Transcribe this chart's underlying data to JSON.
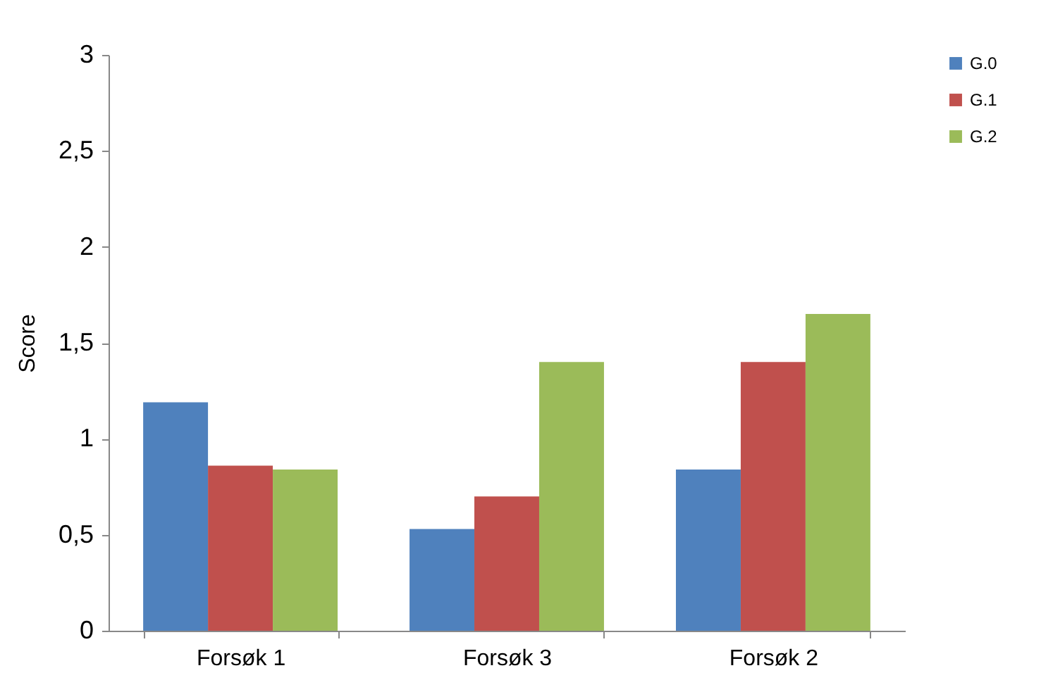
{
  "chart_data": {
    "type": "bar",
    "ylabel": "Score",
    "categories": [
      "Forsøk 1",
      "Forsøk 3",
      "Forsøk 2"
    ],
    "series": [
      {
        "name": "G.0",
        "color": "#4f81bd",
        "values": [
          1.19,
          0.53,
          0.84
        ]
      },
      {
        "name": "G.1",
        "color": "#c0504d",
        "values": [
          0.86,
          0.7,
          1.4
        ]
      },
      {
        "name": "G.2",
        "color": "#9bbb59",
        "values": [
          0.84,
          1.4,
          1.65
        ]
      }
    ],
    "ylim": [
      0,
      3
    ],
    "yticks": [
      0,
      {
        "value": 0.5,
        "label": "0,5"
      },
      1,
      {
        "value": 1.5,
        "label": "1,5"
      },
      2,
      {
        "value": 2.5,
        "label": "2,5"
      },
      3
    ],
    "grid": false,
    "legend": "right"
  }
}
